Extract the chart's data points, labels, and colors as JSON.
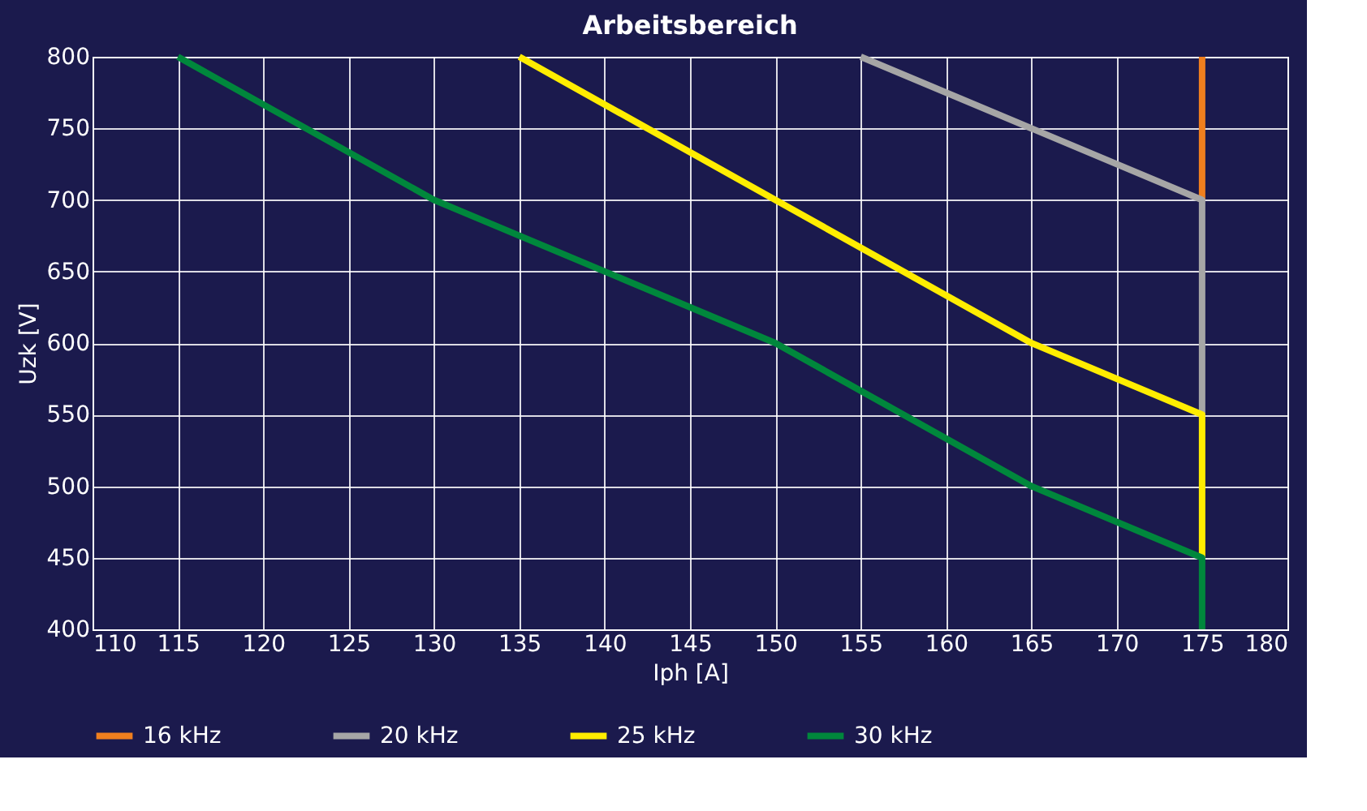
{
  "chart_data": {
    "type": "line",
    "title": "Arbeitsbereich",
    "xlabel": "Iph [A]",
    "ylabel": "Uzk [V]",
    "series": [
      {
        "name": "16 kHz",
        "color": "#f07f1e",
        "x": [
          175,
          175
        ],
        "values": [
          700,
          800
        ]
      },
      {
        "name": "20 kHz",
        "color": "#a6a6a6",
        "x": [
          155,
          175,
          175
        ],
        "values": [
          800,
          700,
          550
        ]
      },
      {
        "name": "25 kHz",
        "color": "#ffed00",
        "x": [
          135,
          150,
          165,
          175,
          175
        ],
        "values": [
          800,
          700,
          600,
          550,
          450
        ]
      },
      {
        "name": "30 kHz",
        "color": "#00873c",
        "x": [
          115,
          130,
          150,
          165,
          175,
          175
        ],
        "values": [
          800,
          700,
          600,
          500,
          450,
          400
        ]
      }
    ],
    "xlim": [
      110,
      180
    ],
    "xticks": [
      110,
      115,
      120,
      125,
      130,
      135,
      140,
      145,
      150,
      155,
      160,
      165,
      170,
      175,
      180
    ],
    "ylim": [
      400,
      800
    ],
    "yticks": [
      400,
      450,
      500,
      550,
      600,
      650,
      700,
      750,
      800
    ],
    "grid": true,
    "legend": "bottom",
    "marker": "none",
    "line_style": "solid"
  }
}
